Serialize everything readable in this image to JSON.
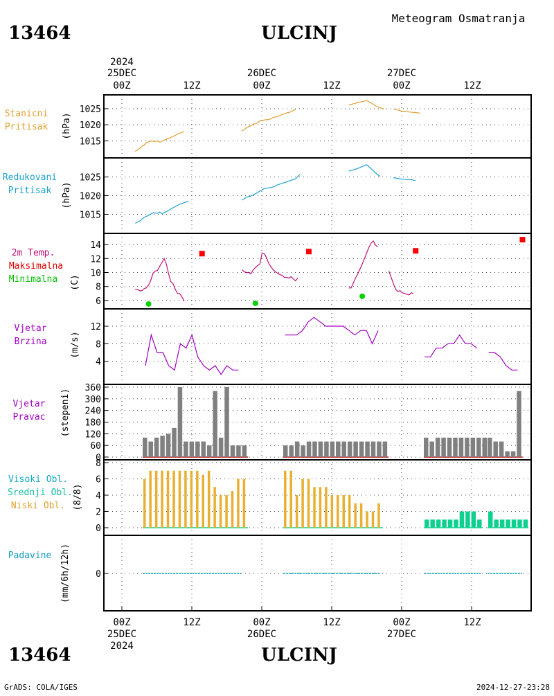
{
  "header": {
    "station_id": "13464",
    "station_name": "ULCINJ",
    "subtitle": "Meteogram Osmatranja"
  },
  "footer": {
    "credit": "GrADS: COLA/IGES",
    "timestamp": "2024-12-27-23:28"
  },
  "top_axis": {
    "year": "2024",
    "date_labels": [
      "25DEC",
      "26DEC",
      "27DEC"
    ],
    "hour_labels": [
      "00Z",
      "12Z",
      "00Z",
      "12Z",
      "00Z",
      "12Z"
    ]
  },
  "bottom_axis": {
    "hour_labels": [
      "00Z",
      "12Z",
      "00Z",
      "12Z",
      "00Z",
      "12Z"
    ],
    "date_labels": [
      "25DEC",
      "26DEC",
      "27DEC"
    ],
    "year": "2024"
  },
  "colors": {
    "pressure_station": "#e0a030",
    "pressure_reduced": "#1aa0d0",
    "temperature": "#c0107a",
    "tmax": "#ff0000",
    "tmin": "#00d000",
    "wind_speed": "#a000c0",
    "wind_dir": "#808080",
    "wind_dir_base": "#d04040",
    "cloud_label_high": "#10a8c8",
    "cloud_label_mid": "#10c0a0",
    "cloud_label_low": "#e0a030",
    "cloud_low_bars": "#e8b030",
    "cloud_mid_bars": "#10d090",
    "precip": "#10a0c0",
    "grid": "#555555"
  },
  "panels": {
    "station_pressure": {
      "label_line1": "Stanicni",
      "label_line2": "Pritisak",
      "unit": "(hPa)"
    },
    "reduced_pressure": {
      "label_line1": "Redukovani",
      "label_line2": "Pritisak",
      "unit": "(hPa)"
    },
    "temperature": {
      "label_line1": "2m Temp.",
      "label_line2": "Maksimalna",
      "label_line3": "Minimalna",
      "unit": "(C)"
    },
    "wind_speed": {
      "label_line1": "Vjetar",
      "label_line2": "Brzina",
      "unit": "(m/s)"
    },
    "wind_direction": {
      "label_line1": "Vjetar",
      "label_line2": "Pravac",
      "unit": "(stepeni)"
    },
    "clouds": {
      "label_line1": "Visoki Obl.",
      "label_line2": "Srednji Obl.",
      "label_line3": "Niski Obl.",
      "unit": "(8/8)"
    },
    "precipitation": {
      "label_line1": "Padavine",
      "unit": "(mm/6h/12h)"
    }
  },
  "chart_data": [
    {
      "type": "line",
      "name": "station_pressure",
      "x_unit": "hours since 2024-12-25 00Z",
      "ylim": [
        1011,
        1028
      ],
      "yticks": [
        1015,
        1020,
        1025
      ],
      "segments": [
        [
          [
            6,
            1011.7
          ],
          [
            7,
            1012.2
          ],
          [
            8,
            1012.6
          ],
          [
            9,
            1013.4
          ],
          [
            10,
            1013.7
          ],
          [
            11,
            1014.4
          ],
          [
            12,
            1014.7
          ],
          [
            13,
            1014.9
          ],
          [
            14,
            1014.9
          ],
          [
            15,
            1014.8
          ],
          [
            16,
            1015
          ],
          [
            17,
            1014.6
          ],
          [
            18,
            1014.9
          ],
          [
            19,
            1015.2
          ],
          [
            20,
            1015.5
          ],
          [
            21,
            1015.8
          ],
          [
            22,
            1016.1
          ],
          [
            23,
            1016.4
          ],
          [
            24,
            1016.7
          ],
          [
            25,
            1017.1
          ],
          [
            26,
            1017.4
          ],
          [
            27,
            1017.6
          ],
          [
            28,
            1017.9
          ]
        ],
        [
          [
            54,
            1018.1
          ],
          [
            55,
            1018.5
          ],
          [
            56,
            1019.1
          ],
          [
            57,
            1019.4
          ],
          [
            58,
            1019.7
          ],
          [
            59,
            1020.2
          ],
          [
            60,
            1020.3
          ],
          [
            61,
            1020.6
          ],
          [
            62,
            1021.2
          ],
          [
            63,
            1021.3
          ],
          [
            64,
            1021.5
          ],
          [
            65,
            1021.6
          ],
          [
            66,
            1021.6
          ],
          [
            67,
            1021.9
          ],
          [
            68,
            1022.3
          ],
          [
            69,
            1022.4
          ],
          [
            70,
            1022.6
          ],
          [
            71,
            1022.9
          ],
          [
            72,
            1023.2
          ],
          [
            73,
            1023.4
          ],
          [
            74,
            1023.7
          ],
          [
            75,
            1023.8
          ],
          [
            76,
            1024.1
          ],
          [
            77,
            1024.4
          ],
          [
            78,
            1024.9
          ]
        ],
        [
          [
            102,
            1026.2
          ],
          [
            104,
            1026.5
          ],
          [
            106,
            1026.9
          ],
          [
            108,
            1027.2
          ],
          [
            110,
            1027.5
          ],
          [
            112,
            1026.8
          ],
          [
            114,
            1025.9
          ],
          [
            116,
            1025.3
          ],
          [
            118,
            1024.9
          ]
        ],
        [
          [
            122,
            1024.9
          ],
          [
            124,
            1024.6
          ],
          [
            126,
            1024.2
          ],
          [
            128,
            1024.1
          ],
          [
            130,
            1023.9
          ],
          [
            132,
            1023.8
          ],
          [
            134,
            1023.6
          ]
        ]
      ]
    },
    {
      "type": "line",
      "name": "reduced_pressure",
      "x_unit": "hours since 2024-12-25 00Z",
      "ylim": [
        1011,
        1029
      ],
      "yticks": [
        1015,
        1020,
        1025
      ],
      "segments": [
        [
          [
            6,
            1012.6
          ],
          [
            8,
            1013.2
          ],
          [
            10,
            1014.2
          ],
          [
            12,
            1014.7
          ],
          [
            14,
            1015.4
          ],
          [
            16,
            1015.3
          ],
          [
            17,
            1015.6
          ],
          [
            18,
            1015.2
          ],
          [
            20,
            1015.7
          ],
          [
            22,
            1016.4
          ],
          [
            24,
            1017.1
          ],
          [
            26,
            1017.7
          ],
          [
            28,
            1018.1
          ],
          [
            30,
            1018.5
          ]
        ],
        [
          [
            54,
            1018.8
          ],
          [
            56,
            1019.6
          ],
          [
            58,
            1019.9
          ],
          [
            60,
            1020.5
          ],
          [
            62,
            1021.2
          ],
          [
            64,
            1021.9
          ],
          [
            66,
            1022.1
          ],
          [
            68,
            1022.3
          ],
          [
            70,
            1022.9
          ],
          [
            72,
            1023.3
          ],
          [
            74,
            1023.7
          ],
          [
            76,
            1024.1
          ],
          [
            78,
            1024.5
          ],
          [
            80,
            1025.7
          ]
        ],
        [
          [
            102,
            1026.6
          ],
          [
            104,
            1026.9
          ],
          [
            106,
            1027.3
          ],
          [
            108,
            1027.8
          ],
          [
            110,
            1028.3
          ],
          [
            112,
            1027.2
          ],
          [
            114,
            1026.1
          ],
          [
            116,
            1025.1
          ]
        ],
        [
          [
            122,
            1024.8
          ],
          [
            124,
            1024.6
          ],
          [
            126,
            1024.4
          ],
          [
            128,
            1024.3
          ],
          [
            130,
            1024.3
          ],
          [
            132,
            1024.0
          ]
        ]
      ]
    },
    {
      "type": "line",
      "name": "temperature_2m",
      "x_unit": "hours since 2024-12-25 00Z",
      "ylim": [
        5,
        15
      ],
      "yticks": [
        6,
        8,
        10,
        12,
        14
      ],
      "segments": [
        [
          [
            6,
            7.6
          ],
          [
            7,
            7.6
          ],
          [
            8,
            7.4
          ],
          [
            9,
            7.4
          ],
          [
            10,
            7.7
          ],
          [
            11,
            7.8
          ],
          [
            12,
            8.2
          ],
          [
            13,
            8.9
          ],
          [
            14,
            9.9
          ],
          [
            15,
            10.2
          ],
          [
            16,
            10.3
          ],
          [
            17,
            10.9
          ],
          [
            18,
            11.4
          ],
          [
            19,
            12
          ],
          [
            20,
            11.2
          ],
          [
            21,
            9.8
          ],
          [
            22,
            8.7
          ],
          [
            23,
            8.4
          ],
          [
            24,
            7.6
          ],
          [
            25,
            7
          ],
          [
            26,
            7
          ],
          [
            27,
            6.5
          ],
          [
            28,
            5.9
          ]
        ],
        [
          [
            54,
            10.4
          ],
          [
            55,
            10.1
          ],
          [
            56,
            10
          ],
          [
            57,
            10
          ],
          [
            58,
            9.8
          ],
          [
            59,
            10.4
          ],
          [
            60,
            10.7
          ],
          [
            61,
            11
          ],
          [
            62,
            11.2
          ],
          [
            63,
            12.8
          ],
          [
            64,
            12.7
          ],
          [
            65,
            12.1
          ],
          [
            66,
            11.3
          ],
          [
            67,
            10.8
          ],
          [
            68,
            10.4
          ],
          [
            69,
            10.1
          ],
          [
            70,
            9.9
          ],
          [
            71,
            9.7
          ],
          [
            72,
            9.6
          ],
          [
            73,
            9.3
          ],
          [
            74,
            9.3
          ],
          [
            75,
            9.2
          ],
          [
            76,
            9.4
          ],
          [
            77,
            9.1
          ],
          [
            78,
            8.8
          ],
          [
            79,
            9.2
          ]
        ],
        [
          [
            102,
            7.8
          ],
          [
            103,
            7.8
          ],
          [
            104,
            8.5
          ],
          [
            105,
            9.2
          ],
          [
            106,
            9.8
          ],
          [
            107,
            10.5
          ],
          [
            108,
            11.2
          ],
          [
            109,
            12
          ],
          [
            110,
            12.8
          ],
          [
            111,
            13.6
          ],
          [
            112,
            14.2
          ],
          [
            113,
            14.5
          ],
          [
            114,
            13.9
          ],
          [
            115,
            13.7
          ]
        ],
        [
          [
            120,
            10.2
          ],
          [
            121,
            9.3
          ],
          [
            122,
            8.4
          ],
          [
            123,
            7.6
          ],
          [
            124,
            7.3
          ],
          [
            125,
            7.4
          ],
          [
            126,
            7.1
          ],
          [
            127,
            7.0
          ],
          [
            128,
            6.9
          ],
          [
            129,
            6.8
          ],
          [
            130,
            7.1
          ],
          [
            131,
            7.0
          ]
        ]
      ],
      "tmax": [
        [
          18,
          12.7
        ],
        [
          42,
          13.0
        ],
        [
          66,
          13.1
        ],
        [
          90,
          14.7
        ]
      ],
      "tmin": [
        [
          6,
          5.5
        ],
        [
          30,
          5.6
        ],
        [
          54,
          6.6
        ]
      ]
    },
    {
      "type": "line",
      "name": "wind_speed",
      "x_unit": "hours since 2024-12-25 00Z",
      "ylim": [
        0,
        15
      ],
      "yticks": [
        4,
        8,
        12
      ],
      "segments": [
        [
          [
            3,
            3
          ],
          [
            4,
            10
          ],
          [
            5,
            6
          ],
          [
            6,
            6
          ],
          [
            7,
            3
          ],
          [
            8,
            2
          ],
          [
            9,
            8
          ],
          [
            10,
            7
          ],
          [
            11,
            10
          ],
          [
            12,
            5
          ],
          [
            13,
            3
          ],
          [
            14,
            2
          ],
          [
            15,
            3
          ],
          [
            16,
            1
          ],
          [
            17,
            3
          ],
          [
            18,
            2
          ],
          [
            19,
            2
          ]
        ],
        [
          [
            27,
            10
          ],
          [
            28,
            10
          ],
          [
            29,
            10
          ],
          [
            30,
            11
          ],
          [
            31,
            13
          ],
          [
            32,
            14
          ],
          [
            33,
            13
          ],
          [
            34,
            12
          ],
          [
            35,
            12
          ],
          [
            36,
            12
          ],
          [
            37,
            12
          ],
          [
            38,
            11
          ],
          [
            39,
            10
          ],
          [
            40,
            11
          ],
          [
            41,
            11
          ],
          [
            42,
            8
          ],
          [
            43,
            11
          ]
        ],
        [
          [
            51,
            5
          ],
          [
            52,
            5
          ],
          [
            53,
            7
          ],
          [
            54,
            7
          ],
          [
            55,
            8
          ],
          [
            56,
            8
          ],
          [
            57,
            10
          ],
          [
            58,
            8
          ],
          [
            59,
            8
          ],
          [
            60,
            7
          ]
        ],
        [
          [
            62,
            6
          ],
          [
            63,
            6
          ],
          [
            64,
            5
          ],
          [
            65,
            3
          ],
          [
            66,
            2
          ],
          [
            67,
            2
          ]
        ]
      ],
      "x_note": "index steps of 3 hours starting 2024-12-24 21Z"
    },
    {
      "type": "bar",
      "name": "wind_direction",
      "ylim": [
        0,
        360
      ],
      "yticks": [
        0,
        60,
        120,
        180,
        240,
        300,
        360
      ],
      "segments": [
        [
          100,
          80,
          100,
          110,
          120,
          150,
          360,
          80,
          80,
          80,
          80,
          60,
          340,
          100,
          360,
          60,
          60,
          60
        ],
        [
          60,
          60,
          80,
          60,
          80,
          80,
          80,
          80,
          80,
          80,
          80,
          80,
          80,
          80,
          80,
          80,
          80,
          80
        ],
        [
          100,
          80,
          100,
          100,
          100,
          100,
          100,
          100,
          100,
          100,
          100
        ],
        [
          100,
          80,
          80,
          30,
          30,
          340
        ]
      ]
    },
    {
      "type": "bar",
      "name": "clouds",
      "ylim": [
        0,
        8
      ],
      "yticks": [
        0,
        2,
        4,
        6,
        8
      ],
      "low_cloud_segments": [
        [
          6,
          7,
          7,
          7,
          7,
          7,
          7,
          7,
          7,
          7,
          6.5,
          7,
          5,
          4,
          4,
          4.5,
          6,
          6
        ],
        [
          7,
          7,
          4,
          6,
          6,
          5,
          5,
          5,
          4,
          4,
          4,
          4,
          3,
          3,
          2,
          2,
          3
        ],
        [],
        []
      ],
      "mid_cloud_segments": [
        [],
        [],
        [
          1,
          1,
          1,
          1,
          1,
          1,
          2,
          2,
          2,
          1
        ],
        [
          2,
          1,
          1,
          1,
          1,
          1,
          1
        ]
      ]
    },
    {
      "type": "line",
      "name": "precipitation",
      "yticks": [
        0
      ],
      "ylim": [
        0,
        1
      ],
      "segments": [
        [
          0
        ],
        [
          0
        ],
        [
          0
        ],
        [
          0
        ]
      ]
    }
  ]
}
